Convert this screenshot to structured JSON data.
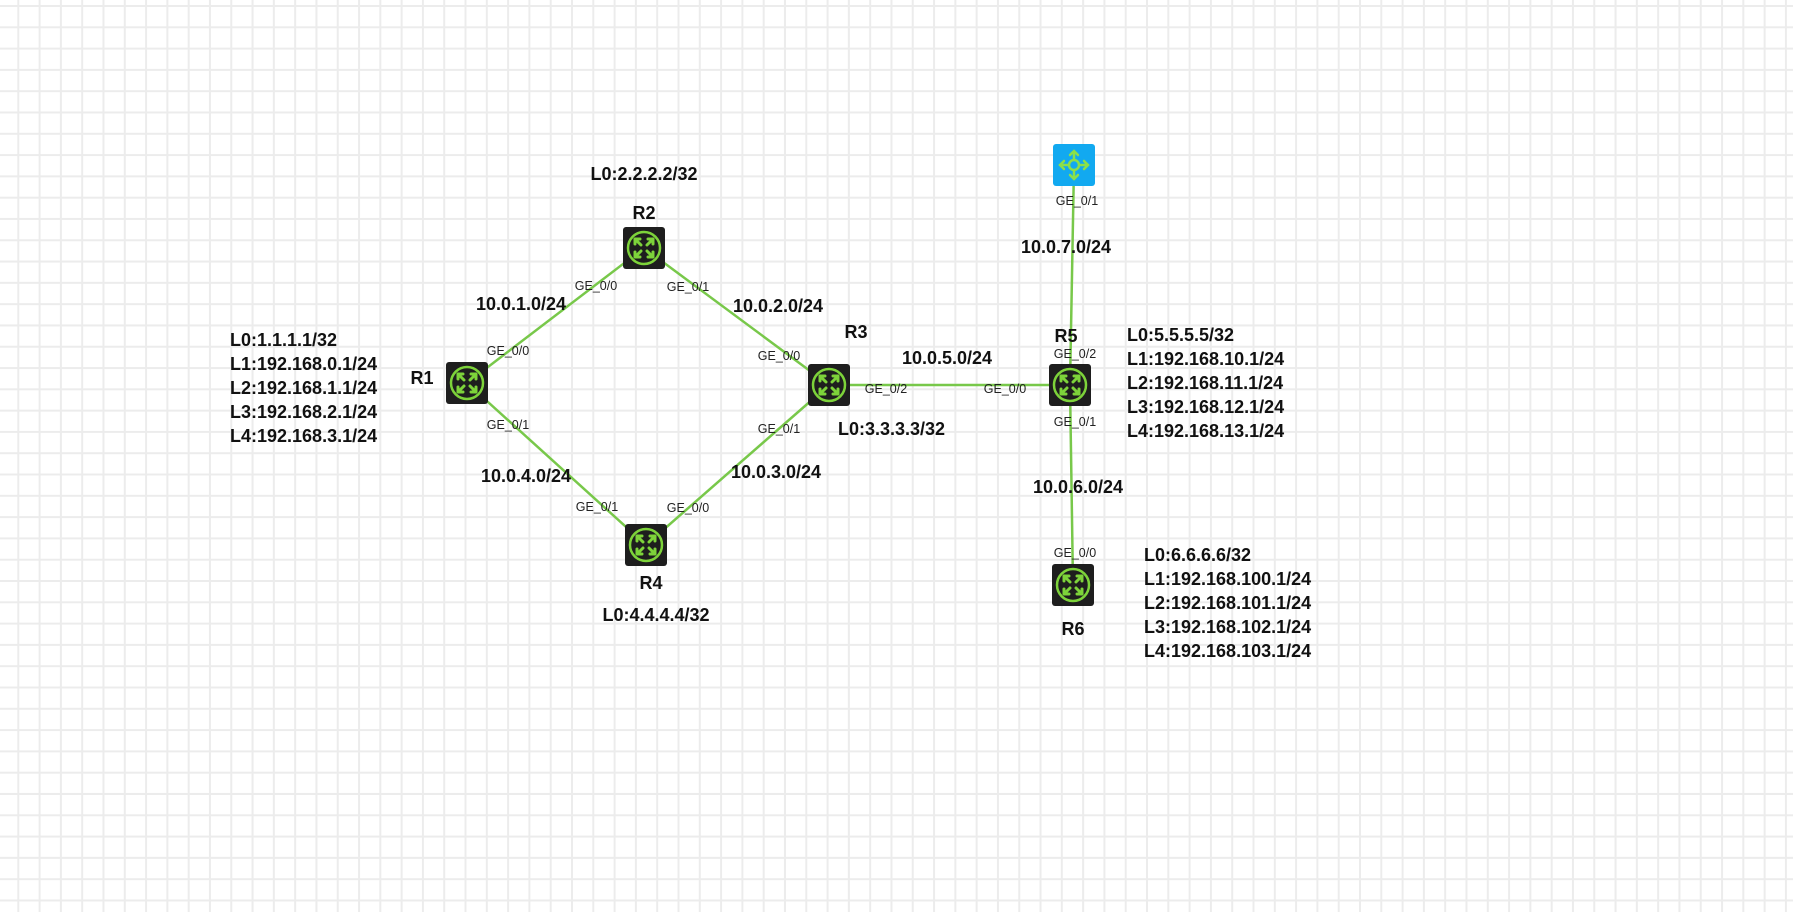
{
  "colors": {
    "link": "#78c84a",
    "router_body": "#1e1e1e",
    "router_ring": "#7dd33a",
    "switch_body": "#12a9f0"
  },
  "devices": {
    "R1": {
      "name": "R1",
      "icon": "router-icon",
      "loopbacks": [
        "L0:1.1.1.1/32",
        "L1:192.168.0.1/24",
        "L2:192.168.1.1/24",
        "L3:192.168.2.1/24",
        "L4:192.168.3.1/24"
      ],
      "ports": [
        "GE_0/0",
        "GE_0/1"
      ]
    },
    "R2": {
      "name": "R2",
      "icon": "router-icon",
      "loopbacks": [
        "L0:2.2.2.2/32"
      ],
      "ports": [
        "GE_0/0",
        "GE_0/1"
      ]
    },
    "R3": {
      "name": "R3",
      "icon": "router-icon",
      "loopbacks": [
        "L0:3.3.3.3/32"
      ],
      "ports": [
        "GE_0/0",
        "GE_0/1",
        "GE_0/2"
      ]
    },
    "R4": {
      "name": "R4",
      "icon": "router-icon",
      "loopbacks": [
        "L0:4.4.4.4/32"
      ],
      "ports": [
        "GE_0/1",
        "GE_0/0"
      ]
    },
    "R5": {
      "name": "R5",
      "icon": "router-icon",
      "loopbacks": [
        "L0:5.5.5.5/32",
        "L1:192.168.10.1/24",
        "L2:192.168.11.1/24",
        "L3:192.168.12.1/24",
        "L4:192.168.13.1/24"
      ],
      "ports": [
        "GE_0/0",
        "GE_0/1",
        "GE_0/2"
      ]
    },
    "R6": {
      "name": "R6",
      "icon": "router-icon",
      "loopbacks": [
        "L0:6.6.6.6/32",
        "L1:192.168.100.1/24",
        "L2:192.168.101.1/24",
        "L3:192.168.102.1/24",
        "L4:192.168.103.1/24"
      ],
      "ports": [
        "GE_0/0"
      ]
    },
    "SW": {
      "icon": "l3-switch-icon",
      "ports": [
        "GE_0/1"
      ]
    }
  },
  "links": {
    "r1_r2": "10.0.1.0/24",
    "r2_r3": "10.0.2.0/24",
    "r1_r4": "10.0.4.0/24",
    "r4_r3": "10.0.3.0/24",
    "r3_r5": "10.0.5.0/24",
    "sw_r5": "10.0.7.0/24",
    "r5_r6": "10.0.6.0/24"
  }
}
